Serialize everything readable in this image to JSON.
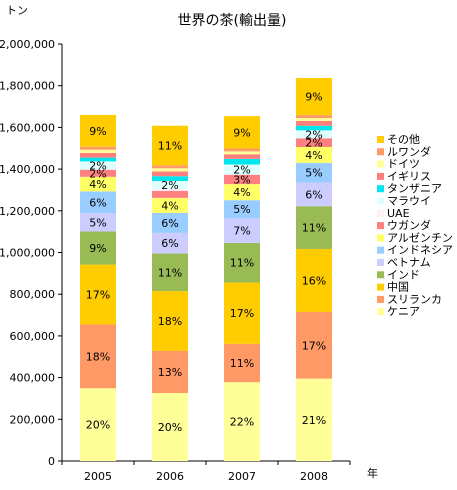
{
  "chart_data": {
    "type": "bar",
    "stacked": true,
    "title": "世界の茶(輸出量)",
    "ylabel": "トン",
    "xlabel": "年",
    "categories": [
      "2005",
      "2006",
      "2007",
      "2008"
    ],
    "ylim": [
      0,
      2000000
    ],
    "yticks": [
      "0",
      "200,000",
      "400,000",
      "600,000",
      "800,000",
      "1,000,000",
      "1,200,000",
      "1,400,000",
      "1,600,000",
      "1,800,000",
      "2,000,000"
    ],
    "ytick_values": [
      0,
      200000,
      400000,
      600000,
      800000,
      1000000,
      1200000,
      1400000,
      1600000,
      1800000,
      2000000
    ],
    "grid": false,
    "legend_position": "right",
    "series": [
      {
        "name": "ケニア",
        "color": "#FFFF99",
        "values": [
          349000,
          326000,
          378000,
          395000
        ],
        "labels": [
          "20%",
          "20%",
          "22%",
          "21%"
        ]
      },
      {
        "name": "スリランカ",
        "color": "#FF9966",
        "values": [
          306000,
          202000,
          184000,
          320000
        ],
        "labels": [
          "18%",
          "13%",
          "11%",
          "17%"
        ]
      },
      {
        "name": "中国",
        "color": "#FFCC00",
        "values": [
          287000,
          287000,
          294000,
          302000
        ],
        "labels": [
          "17%",
          "18%",
          "17%",
          "16%"
        ]
      },
      {
        "name": "インド",
        "color": "#99BB55",
        "values": [
          159000,
          180000,
          190000,
          205000
        ],
        "labels": [
          "9%",
          "11%",
          "11%",
          "11%"
        ]
      },
      {
        "name": "ベトナム",
        "color": "#CCCCFF",
        "values": [
          88000,
          99000,
          118000,
          113000
        ],
        "labels": [
          "5%",
          "6%",
          "7%",
          "6%"
        ]
      },
      {
        "name": "インドネシア",
        "color": "#99CCFF",
        "values": [
          104000,
          96000,
          87000,
          95000
        ],
        "labels": [
          "6%",
          "6%",
          "5%",
          "5%"
        ]
      },
      {
        "name": "アルゼンチン",
        "color": "#FFFF66",
        "values": [
          70000,
          72000,
          77000,
          76000
        ],
        "labels": [
          "4%",
          "4%",
          "4%",
          "4%"
        ]
      },
      {
        "name": "ウガンダ",
        "color": "#FF8080",
        "values": [
          34000,
          33000,
          45000,
          42000
        ],
        "labels": [
          "2%",
          "",
          "3%",
          "2%"
        ]
      },
      {
        "name": "UAE",
        "color": "#FFEEF5",
        "values": [
          0,
          10000,
          0,
          0
        ],
        "labels": [
          "",
          "",
          "",
          ""
        ]
      },
      {
        "name": "マラウイ",
        "color": "#E0FFFF",
        "values": [
          40000,
          38000,
          49000,
          38000
        ],
        "labels": [
          "2%",
          "2%",
          "2%",
          "2%"
        ]
      },
      {
        "name": "タンザニア",
        "color": "#00E5EE",
        "values": [
          18000,
          23000,
          27000,
          22000
        ],
        "labels": [
          "",
          "",
          "",
          ""
        ]
      },
      {
        "name": "イギリス",
        "color": "#FF7F7F",
        "values": [
          23000,
          23000,
          22000,
          23000
        ],
        "labels": [
          "",
          "",
          "",
          ""
        ]
      },
      {
        "name": "ドイツ",
        "color": "#FFFF99",
        "values": [
          15000,
          15000,
          14000,
          14000
        ],
        "labels": [
          "",
          "",
          "",
          ""
        ]
      },
      {
        "name": "ルワンダ",
        "color": "#FF9966",
        "values": [
          14000,
          14000,
          14000,
          14000
        ],
        "labels": [
          "",
          "",
          "",
          ""
        ]
      },
      {
        "name": "その他",
        "color": "#FFCC00",
        "values": [
          153000,
          190000,
          155000,
          178000
        ],
        "labels": [
          "9%",
          "11%",
          "9%",
          "9%"
        ]
      }
    ]
  }
}
